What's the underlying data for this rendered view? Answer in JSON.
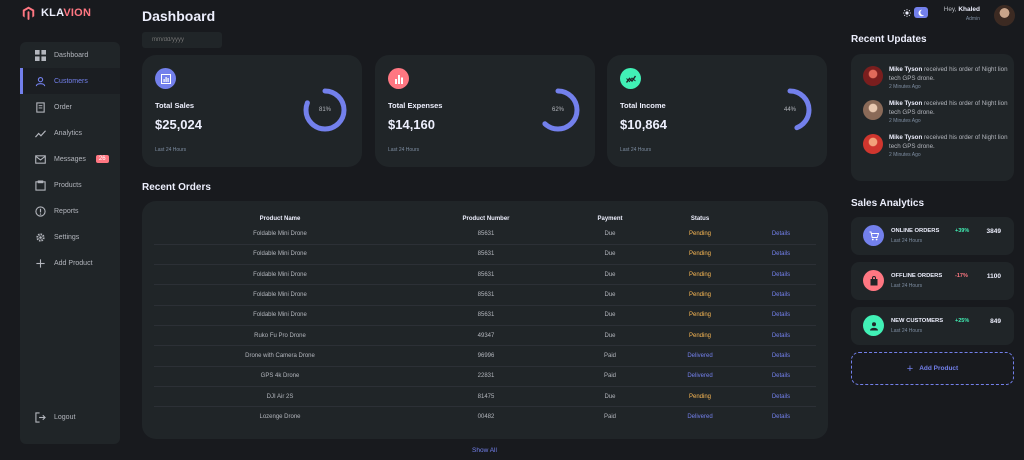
{
  "brand": {
    "prefix": "KLA",
    "suffix": "VION",
    "accent": "#ff7782"
  },
  "header": {
    "title": "Dashboard",
    "date_placeholder": "mm/dd/yyyy"
  },
  "profile": {
    "greeting": "Hey,",
    "name": "Khaled",
    "role": "Admin"
  },
  "theme": {
    "light_icon": "sun-icon",
    "dark_icon": "moon-icon",
    "active": "dark"
  },
  "sidebar": {
    "items": [
      {
        "label": "Dashboard",
        "icon": "grid-icon"
      },
      {
        "label": "Customers",
        "icon": "person-icon",
        "active": true
      },
      {
        "label": "Order",
        "icon": "receipt-icon"
      },
      {
        "label": "Analytics",
        "icon": "insights-icon"
      },
      {
        "label": "Messages",
        "icon": "mail-icon",
        "badge": "26"
      },
      {
        "label": "Products",
        "icon": "inventory-icon"
      },
      {
        "label": "Reports",
        "icon": "report-icon"
      },
      {
        "label": "Settings",
        "icon": "gear-icon"
      },
      {
        "label": "Add Product",
        "icon": "plus-icon"
      }
    ],
    "logout": "Logout"
  },
  "cards": [
    {
      "label": "Total Sales",
      "value": "$25,024",
      "percent": 81,
      "percent_label": "81%",
      "foot": "Last 24 Hours",
      "icon_color": "#7380ec",
      "icon": "analytics-icon"
    },
    {
      "label": "Total Expenses",
      "value": "$14,160",
      "percent": 62,
      "percent_label": "62%",
      "foot": "Last 24 Hours",
      "icon_color": "#ff7782",
      "icon": "bar-chart-icon"
    },
    {
      "label": "Total Income",
      "value": "$10,864",
      "percent": 44,
      "percent_label": "44%",
      "foot": "Last 24 Hours",
      "icon_color": "#41f1b6",
      "icon": "stock-line-icon"
    }
  ],
  "orders": {
    "title": "Recent Orders",
    "columns": [
      "Product Name",
      "Product Number",
      "Payment",
      "Status",
      ""
    ],
    "rows": [
      {
        "name": "Foldable Mini Drone",
        "number": "85631",
        "payment": "Due",
        "status": "Pending",
        "action": "Details"
      },
      {
        "name": "Foldable Mini Drone",
        "number": "85631",
        "payment": "Due",
        "status": "Pending",
        "action": "Details"
      },
      {
        "name": "Foldable Mini Drone",
        "number": "85631",
        "payment": "Due",
        "status": "Pending",
        "action": "Details"
      },
      {
        "name": "Foldable Mini Drone",
        "number": "85631",
        "payment": "Due",
        "status": "Pending",
        "action": "Details"
      },
      {
        "name": "Foldable Mini Drone",
        "number": "85631",
        "payment": "Due",
        "status": "Pending",
        "action": "Details"
      },
      {
        "name": "Ruko Fu Pro Drone",
        "number": "49347",
        "payment": "Due",
        "status": "Pending",
        "action": "Details"
      },
      {
        "name": "Drone with Camera Drone",
        "number": "96996",
        "payment": "Paid",
        "status": "Delivered",
        "action": "Details"
      },
      {
        "name": "GPS 4k Drone",
        "number": "22831",
        "payment": "Paid",
        "status": "Delivered",
        "action": "Details"
      },
      {
        "name": "DJI Air 2S",
        "number": "81475",
        "payment": "Due",
        "status": "Pending",
        "action": "Details"
      },
      {
        "name": "Lozenge Drone",
        "number": "00482",
        "payment": "Paid",
        "status": "Delivered",
        "action": "Details"
      }
    ],
    "show_all": "Show All"
  },
  "updates": {
    "title": "Recent Updates",
    "items": [
      {
        "name": "Mike Tyson",
        "text": " received his order of Night lion tech GPS drone.",
        "time": "2 Minutes Ago"
      },
      {
        "name": "Mike Tyson",
        "text": " received his order of Night lion tech GPS drone.",
        "time": "2 Minutes Ago"
      },
      {
        "name": "Mike Tyson",
        "text": " received his order of Night lion tech GPS drone.",
        "time": "2 Minutes Ago"
      }
    ]
  },
  "analytics": {
    "title": "Sales Analytics",
    "items": [
      {
        "label": "ONLINE ORDERS",
        "foot": "Last 24 Hours",
        "pct": "+39%",
        "value": "3849",
        "icon": "cart-icon",
        "color": "#7380ec",
        "trend": "up"
      },
      {
        "label": "OFFLINE ORDERS",
        "foot": "Last 24 Hours",
        "pct": "-17%",
        "value": "1100",
        "icon": "shopping-bag-icon",
        "color": "#ff7782",
        "trend": "down"
      },
      {
        "label": "NEW CUSTOMERS",
        "foot": "Last 24 Hours",
        "pct": "+25%",
        "value": "849",
        "icon": "person-icon",
        "color": "#41f1b6",
        "trend": "up"
      }
    ],
    "add_product": "Add Product"
  }
}
